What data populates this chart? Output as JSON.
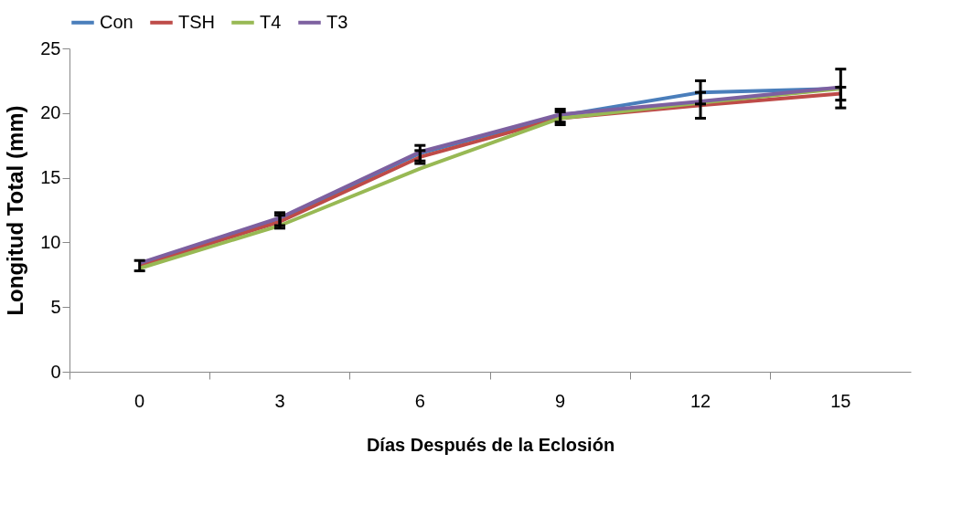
{
  "chart_data": {
    "type": "line",
    "xlabel": "Días Después de la Eclosión",
    "ylabel": "Longitud Total (mm)",
    "categories": [
      "0",
      "3",
      "6",
      "9",
      "12",
      "15"
    ],
    "ylim": [
      0,
      25
    ],
    "yticks": [
      0,
      5,
      10,
      15,
      20,
      25
    ],
    "grid": false,
    "legend": "top",
    "marker": "none",
    "line_style": "solid",
    "series": [
      {
        "name": "Con",
        "color": "#4a7ebb",
        "values": [
          8.1,
          11.8,
          16.9,
          19.8,
          21.6,
          21.9
        ],
        "errors": [
          null,
          0.5,
          0.6,
          0.5,
          0.9,
          1.5
        ]
      },
      {
        "name": "TSH",
        "color": "#be4b48",
        "values": [
          8.2,
          11.6,
          16.6,
          19.6,
          20.6,
          21.5
        ],
        "errors": [
          0.4,
          0.5,
          0.5,
          0.5,
          1.0,
          0.5
        ]
      },
      {
        "name": "T4",
        "color": "#98b954",
        "values": [
          8.0,
          11.3,
          15.7,
          19.6,
          20.8,
          21.9
        ]
      },
      {
        "name": "T3",
        "color": "#7d60a0",
        "values": [
          8.4,
          11.9,
          17.0,
          19.9,
          20.9,
          22.0
        ]
      }
    ]
  }
}
